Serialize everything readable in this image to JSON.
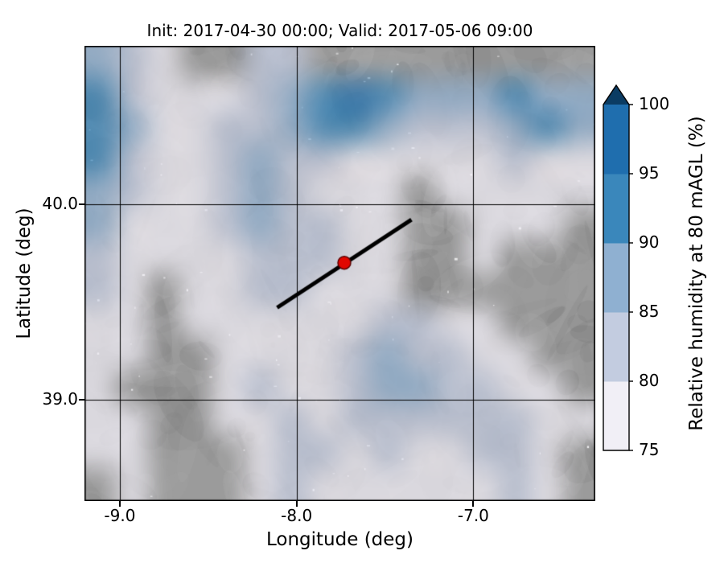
{
  "chart_data": {
    "type": "heatmap",
    "title": "Init: 2017-04-30 00:00; Valid: 2017-05-06 09:00",
    "xlabel": "Longitude (deg)",
    "ylabel": "Latitude (deg)",
    "xlim": [
      -9.2,
      -6.31
    ],
    "ylim": [
      38.48,
      40.81
    ],
    "xticks": [
      {
        "value": -9.0,
        "label": "-9.0"
      },
      {
        "value": -8.0,
        "label": "-8.0"
      },
      {
        "value": -7.0,
        "label": "-7.0"
      }
    ],
    "yticks": [
      {
        "value": 40.0,
        "label": "40.0"
      },
      {
        "value": 39.0,
        "label": "39.0"
      }
    ],
    "colorbar": {
      "label": "Relative humidity at 80 mAGL (%)",
      "ticks": [
        "75",
        "80",
        "85",
        "90",
        "95",
        "100"
      ],
      "tick_values": [
        75,
        80,
        85,
        90,
        95,
        100
      ],
      "levels": [
        75,
        80,
        85,
        90,
        95,
        100
      ],
      "colors": [
        "#f1eff6",
        "#c3cce0",
        "#8fb0d1",
        "#3a87bb",
        "#1f6eae"
      ],
      "over_color": "#0b3c63",
      "extend": "max"
    },
    "grid": {
      "lon_min": -9.2,
      "lon_max": -6.31,
      "lat_min": 38.48,
      "lat_max": 40.81,
      "ncols": 16,
      "nrows": 14,
      "units": "percent_relative_humidity",
      "values_rh_percent": [
        [
          88,
          82,
          76,
          74,
          73,
          80,
          82,
          74,
          73,
          74,
          73,
          74,
          73,
          74,
          74,
          73
        ],
        [
          90,
          84,
          77,
          75,
          76,
          80,
          85,
          92,
          96,
          93,
          88,
          85,
          88,
          90,
          86,
          88
        ],
        [
          92,
          85,
          77,
          76,
          80,
          84,
          88,
          93,
          90,
          86,
          82,
          80,
          84,
          88,
          90,
          85
        ],
        [
          90,
          83,
          76,
          78,
          82,
          86,
          84,
          80,
          78,
          76,
          75,
          76,
          78,
          80,
          78,
          76
        ],
        [
          88,
          80,
          76,
          77,
          84,
          88,
          82,
          78,
          76,
          75,
          74,
          75,
          76,
          78,
          76,
          75
        ],
        [
          85,
          78,
          75,
          76,
          80,
          86,
          84,
          82,
          78,
          75,
          74,
          74,
          75,
          76,
          75,
          74
        ],
        [
          82,
          77,
          75,
          75,
          78,
          82,
          84,
          80,
          78,
          76,
          74,
          74,
          75,
          74,
          74,
          73
        ],
        [
          80,
          76,
          74,
          78,
          76,
          80,
          82,
          78,
          76,
          75,
          74,
          73,
          74,
          74,
          73,
          73
        ],
        [
          78,
          75,
          74,
          76,
          75,
          76,
          78,
          76,
          78,
          80,
          80,
          78,
          76,
          74,
          73,
          73
        ],
        [
          76,
          75,
          74,
          74,
          75,
          78,
          76,
          75,
          82,
          86,
          84,
          80,
          78,
          76,
          74,
          74
        ],
        [
          75,
          74,
          73,
          74,
          76,
          80,
          78,
          76,
          84,
          88,
          86,
          82,
          80,
          78,
          76,
          74
        ],
        [
          76,
          75,
          73,
          74,
          75,
          78,
          82,
          78,
          80,
          84,
          82,
          80,
          82,
          80,
          76,
          75
        ],
        [
          75,
          76,
          74,
          73,
          74,
          76,
          84,
          80,
          78,
          80,
          78,
          76,
          80,
          82,
          78,
          74
        ],
        [
          74,
          75,
          73,
          73,
          74,
          75,
          80,
          78,
          76,
          78,
          76,
          75,
          78,
          80,
          75,
          73
        ]
      ]
    },
    "cross_section_line": {
      "lon": [
        -8.11,
        -7.35
      ],
      "lat": [
        39.47,
        39.92
      ],
      "color": "#000000"
    },
    "marker": {
      "lon": -7.73,
      "lat": 39.7,
      "color": "#e10600"
    },
    "layout": {
      "land_color": "#9b9b9b",
      "grid_lines": true,
      "grid_line_color": "#000000",
      "plot_border_color": "#000000",
      "overlay_alpha": 0.72,
      "legend_position": "right-colorbar"
    }
  }
}
